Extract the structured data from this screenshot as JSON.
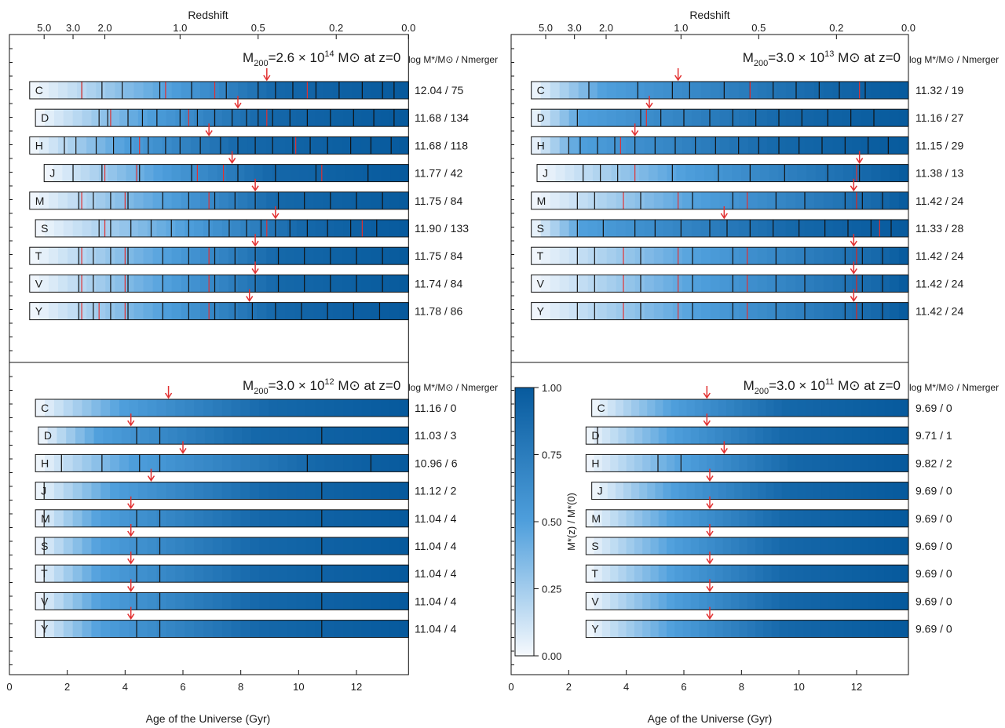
{
  "figure": {
    "top_axis_label": "Redshift",
    "bottom_axis_label": "Age of the Universe (Gyr)",
    "right_column_header": "log M*/M⊙ / Nmerger",
    "colorbar_label": "M*(z) / M*(0)",
    "colorbar_ticks": [
      "0.00",
      "0.25",
      "0.50",
      "0.75",
      "1.00"
    ],
    "colors": {
      "track_start": "#f6f9fd",
      "track_mid": "#4f9fdc",
      "track_end": "#075a9d",
      "merger_line": "#111111",
      "major_merger_line": "#e23030",
      "arrow": "#e23030"
    }
  },
  "chart_data": [
    {
      "type": "heatmap",
      "title": "M200=2.6 × 10^14 M⊙ at z=0",
      "title_parts": {
        "prefix": "M",
        "sub": "200",
        "mid": "=2.6 × 10",
        "sup": "14",
        "unit": " M⊙  at z=0"
      },
      "xlabel": "Age of the Universe (Gyr)",
      "xlim": [
        0,
        13.8
      ],
      "xticks": [
        "0",
        "2",
        "4",
        "6",
        "8",
        "10",
        "12"
      ],
      "top_xlabel": "Redshift",
      "top_ticks": [
        "5.0",
        "3.0",
        "2.0",
        "1.0",
        "0.5",
        "0.2",
        "0.0"
      ],
      "top_tick_ages": [
        1.2,
        2.2,
        3.3,
        5.9,
        8.6,
        11.3,
        13.8
      ],
      "show_top_axis": true,
      "show_bottom_axis": false,
      "rows": [
        {
          "label": "C",
          "start_age": 0.7,
          "half_mass_age": 8.9,
          "mass50": 5.6,
          "mass90": 9.2,
          "log_mstar": "12.04",
          "n_merger": "75",
          "mergers": [
            2.5,
            3.2,
            3.9,
            5.2,
            6.3,
            7.5,
            8.6,
            9.2,
            9.8,
            10.6,
            11.4,
            12.2,
            12.9,
            13.3
          ],
          "major_mergers": [
            2.5,
            5.4,
            7.1,
            10.3
          ]
        },
        {
          "label": "D",
          "start_age": 0.9,
          "half_mass_age": 7.9,
          "mass50": 4.8,
          "mass90": 8.8,
          "log_mstar": "11.68",
          "n_merger": "134",
          "mergers": [
            3.1,
            3.4,
            4.1,
            4.6,
            5.1,
            5.9,
            6.5,
            7.1,
            7.7,
            8.2,
            8.6,
            9.1,
            9.7,
            10.3,
            11.1,
            11.9,
            12.6,
            13.3
          ],
          "major_mergers": [
            3.5,
            6.2,
            8.9
          ]
        },
        {
          "label": "H",
          "start_age": 0.7,
          "half_mass_age": 6.9,
          "mass50": 4.0,
          "mass90": 8.0,
          "log_mstar": "11.68",
          "n_merger": "118",
          "mergers": [
            1.9,
            2.3,
            3.0,
            3.6,
            4.2,
            4.8,
            5.4,
            5.9,
            6.6,
            7.3,
            7.9,
            8.5,
            9.1,
            9.8,
            10.4,
            11.0,
            11.8,
            12.5,
            13.2
          ],
          "major_mergers": [
            4.5,
            9.9
          ]
        },
        {
          "label": "J",
          "start_age": 1.2,
          "half_mass_age": 7.7,
          "mass50": 5.2,
          "mass90": 9.0,
          "log_mstar": "11.77",
          "n_merger": "42",
          "mergers": [
            2.2,
            3.2,
            4.5,
            6.3,
            7.9,
            9.2,
            10.6,
            12.4
          ],
          "major_mergers": [
            3.3,
            4.4,
            6.5,
            7.4,
            10.8
          ]
        },
        {
          "label": "M",
          "start_age": 0.7,
          "half_mass_age": 8.5,
          "mass50": 5.5,
          "mass90": 9.3,
          "log_mstar": "11.75",
          "n_merger": "84",
          "mergers": [
            2.4,
            2.9,
            3.5,
            4.1,
            5.3,
            6.2,
            7.1,
            7.8,
            8.5,
            9.3,
            10.2,
            11.1,
            12.0,
            12.9
          ],
          "major_mergers": [
            2.5,
            4.0,
            6.9
          ]
        },
        {
          "label": "S",
          "start_age": 0.9,
          "half_mass_age": 9.2,
          "mass50": 6.1,
          "mass90": 10.1,
          "log_mstar": "11.90",
          "n_merger": "133",
          "mergers": [
            3.1,
            3.5,
            4.2,
            4.9,
            5.6,
            6.2,
            6.9,
            7.6,
            8.2,
            8.7,
            9.2,
            9.7,
            10.3,
            11.0,
            11.8,
            12.7
          ],
          "major_mergers": [
            3.3,
            8.9,
            12.2
          ]
        },
        {
          "label": "T",
          "start_age": 0.7,
          "half_mass_age": 8.5,
          "mass50": 5.5,
          "mass90": 9.3,
          "log_mstar": "11.75",
          "n_merger": "84",
          "mergers": [
            2.4,
            2.9,
            3.5,
            4.1,
            5.3,
            6.2,
            7.1,
            7.8,
            8.5,
            9.3,
            10.2,
            11.1,
            12.0,
            12.9
          ],
          "major_mergers": [
            2.5,
            4.0,
            6.9
          ]
        },
        {
          "label": "V",
          "start_age": 0.7,
          "half_mass_age": 8.5,
          "mass50": 5.5,
          "mass90": 9.3,
          "log_mstar": "11.74",
          "n_merger": "84",
          "mergers": [
            2.4,
            2.9,
            3.5,
            4.1,
            5.3,
            6.2,
            7.1,
            7.8,
            8.5,
            9.3,
            10.2,
            11.1,
            12.0,
            12.9
          ],
          "major_mergers": [
            2.5,
            4.0,
            6.9
          ]
        },
        {
          "label": "Y",
          "start_age": 0.7,
          "half_mass_age": 8.3,
          "mass50": 5.4,
          "mass90": 9.2,
          "log_mstar": "11.78",
          "n_merger": "86",
          "mergers": [
            2.4,
            2.9,
            3.5,
            4.1,
            5.3,
            6.2,
            7.1,
            7.8,
            8.4,
            9.2,
            10.1,
            11.0,
            11.9,
            12.8
          ],
          "major_mergers": [
            2.5,
            3.1,
            4.0,
            6.9
          ]
        }
      ]
    },
    {
      "type": "heatmap",
      "title": "M200=3.0 × 10^13 M⊙ at z=0",
      "title_parts": {
        "prefix": "M",
        "sub": "200",
        "mid": "=3.0 × 10",
        "sup": "13",
        "unit": " M⊙  at z=0"
      },
      "xlabel": "Age of the Universe (Gyr)",
      "xlim": [
        0,
        13.8
      ],
      "xticks": [
        "0",
        "2",
        "4",
        "6",
        "8",
        "10",
        "12"
      ],
      "top_xlabel": "Redshift",
      "top_ticks": [
        "5.0",
        "3.0",
        "2.0",
        "1.0",
        "0.5",
        "0.2",
        "0.0"
      ],
      "top_tick_ages": [
        1.2,
        2.2,
        3.3,
        5.9,
        8.6,
        11.3,
        13.8
      ],
      "show_top_axis": true,
      "show_bottom_axis": false,
      "rows": [
        {
          "label": "C",
          "start_age": 0.7,
          "half_mass_age": 5.8,
          "mass50": 3.2,
          "mass90": 10.8,
          "log_mstar": "11.32",
          "n_merger": "19",
          "mergers": [
            2.7,
            4.4,
            5.6,
            6.2,
            7.4,
            8.3,
            9.1,
            9.9,
            10.7,
            11.4,
            12.3
          ],
          "major_mergers": [
            8.3,
            12.1
          ]
        },
        {
          "label": "D",
          "start_age": 0.7,
          "half_mass_age": 4.8,
          "mass50": 2.5,
          "mass90": 9.5,
          "log_mstar": "11.16",
          "n_merger": "27",
          "mergers": [
            2.3,
            4.5,
            5.2,
            6.0,
            6.9,
            7.7,
            8.5,
            9.3,
            10.1,
            11.0,
            11.8,
            12.6
          ],
          "major_mergers": [
            4.7
          ]
        },
        {
          "label": "H",
          "start_age": 0.7,
          "half_mass_age": 4.3,
          "mass50": 2.4,
          "mass90": 9.3,
          "log_mstar": "11.15",
          "n_merger": "29",
          "mergers": [
            2.0,
            2.4,
            3.0,
            3.6,
            4.3,
            5.0,
            5.7,
            6.4,
            7.1,
            7.9,
            8.6,
            9.3,
            10.0,
            10.8,
            11.6,
            12.4,
            13.1
          ],
          "major_mergers": [
            3.8
          ]
        },
        {
          "label": "J",
          "start_age": 0.9,
          "half_mass_age": 12.1,
          "mass50": 6.0,
          "mass90": 12.4,
          "log_mstar": "11.38",
          "n_merger": "13",
          "mergers": [
            2.5,
            3.1,
            3.7,
            5.6,
            7.2,
            8.3,
            9.5,
            11.0,
            12.1
          ],
          "major_mergers": [
            4.3,
            12.0
          ]
        },
        {
          "label": "M",
          "start_age": 0.7,
          "half_mass_age": 11.9,
          "mass50": 6.5,
          "mass90": 12.8,
          "log_mstar": "11.42",
          "n_merger": "24",
          "mergers": [
            2.3,
            2.9,
            4.5,
            6.3,
            7.7,
            9.2,
            10.2,
            11.6,
            12.0,
            12.2,
            12.9
          ],
          "major_mergers": [
            3.9,
            5.8,
            8.2,
            12.0
          ]
        },
        {
          "label": "S",
          "start_age": 0.7,
          "half_mass_age": 7.4,
          "mass50": 2.5,
          "mass90": 9.8,
          "log_mstar": "11.33",
          "n_merger": "28",
          "mergers": [
            2.3,
            3.2,
            4.3,
            5.0,
            5.9,
            6.9,
            7.5,
            8.3,
            9.1,
            10.0,
            10.9,
            11.7,
            12.5,
            13.2
          ],
          "major_mergers": [
            12.8
          ]
        },
        {
          "label": "T",
          "start_age": 0.7,
          "half_mass_age": 11.9,
          "mass50": 6.5,
          "mass90": 12.8,
          "log_mstar": "11.42",
          "n_merger": "24",
          "mergers": [
            2.3,
            2.9,
            4.5,
            6.3,
            7.7,
            9.2,
            10.2,
            11.6,
            12.0,
            12.2,
            12.9
          ],
          "major_mergers": [
            3.9,
            5.8,
            8.2,
            12.0
          ]
        },
        {
          "label": "V",
          "start_age": 0.7,
          "half_mass_age": 11.9,
          "mass50": 6.5,
          "mass90": 12.8,
          "log_mstar": "11.42",
          "n_merger": "24",
          "mergers": [
            2.3,
            2.9,
            4.5,
            6.3,
            7.7,
            9.2,
            10.2,
            11.6,
            12.0,
            12.2,
            12.9
          ],
          "major_mergers": [
            3.9,
            5.8,
            8.2,
            12.0
          ]
        },
        {
          "label": "Y",
          "start_age": 0.7,
          "half_mass_age": 11.9,
          "mass50": 6.5,
          "mass90": 12.8,
          "log_mstar": "11.42",
          "n_merger": "24",
          "mergers": [
            2.3,
            2.9,
            4.5,
            6.3,
            7.7,
            9.2,
            10.2,
            11.6,
            12.0,
            12.2,
            12.9
          ],
          "major_mergers": [
            3.9,
            5.8,
            8.2,
            12.0
          ]
        }
      ]
    },
    {
      "type": "heatmap",
      "title": "M200=3.0 × 10^12 M⊙ at z=0",
      "title_parts": {
        "prefix": "M",
        "sub": "200",
        "mid": "=3.0 × 10",
        "sup": "12",
        "unit": " M⊙  at z=0"
      },
      "xlabel": "Age of the Universe (Gyr)",
      "xlim": [
        0,
        13.8
      ],
      "xticks": [
        "0",
        "2",
        "4",
        "6",
        "8",
        "10",
        "12"
      ],
      "show_top_axis": false,
      "show_bottom_axis": true,
      "rows": [
        {
          "label": "C",
          "start_age": 0.9,
          "half_mass_age": 5.5,
          "mass50": 3.9,
          "mass90": 9.0,
          "log_mstar": "11.16",
          "n_merger": "0",
          "mergers": [],
          "major_mergers": []
        },
        {
          "label": "D",
          "start_age": 1.0,
          "half_mass_age": 4.2,
          "mass50": 3.1,
          "mass90": 8.5,
          "log_mstar": "11.03",
          "n_merger": "3",
          "mergers": [
            4.4,
            5.2,
            10.8
          ],
          "major_mergers": []
        },
        {
          "label": "H",
          "start_age": 0.9,
          "half_mass_age": 6.0,
          "mass50": 4.2,
          "mass90": 10.5,
          "log_mstar": "10.96",
          "n_merger": "6",
          "mergers": [
            1.8,
            3.2,
            4.5,
            5.2,
            10.3,
            12.5
          ],
          "major_mergers": []
        },
        {
          "label": "J",
          "start_age": 0.9,
          "half_mass_age": 4.9,
          "mass50": 3.6,
          "mass90": 8.9,
          "log_mstar": "11.12",
          "n_merger": "2",
          "mergers": [
            1.2,
            10.8
          ],
          "major_mergers": []
        },
        {
          "label": "M",
          "start_age": 0.9,
          "half_mass_age": 4.2,
          "mass50": 3.1,
          "mass90": 8.6,
          "log_mstar": "11.04",
          "n_merger": "4",
          "mergers": [
            1.2,
            4.4,
            5.2,
            10.8
          ],
          "major_mergers": []
        },
        {
          "label": "S",
          "start_age": 0.9,
          "half_mass_age": 4.2,
          "mass50": 3.1,
          "mass90": 8.6,
          "log_mstar": "11.04",
          "n_merger": "4",
          "mergers": [
            1.2,
            4.4,
            5.2,
            10.8
          ],
          "major_mergers": []
        },
        {
          "label": "T",
          "start_age": 0.9,
          "half_mass_age": 4.2,
          "mass50": 3.1,
          "mass90": 8.6,
          "log_mstar": "11.04",
          "n_merger": "4",
          "mergers": [
            1.2,
            4.4,
            5.2,
            10.8
          ],
          "major_mergers": []
        },
        {
          "label": "V",
          "start_age": 0.9,
          "half_mass_age": 4.2,
          "mass50": 3.1,
          "mass90": 8.6,
          "log_mstar": "11.04",
          "n_merger": "4",
          "mergers": [
            1.2,
            4.4,
            5.2,
            10.8
          ],
          "major_mergers": []
        },
        {
          "label": "Y",
          "start_age": 0.9,
          "half_mass_age": 4.2,
          "mass50": 3.1,
          "mass90": 8.6,
          "log_mstar": "11.04",
          "n_merger": "4",
          "mergers": [
            1.2,
            4.4,
            5.2,
            10.8
          ],
          "major_mergers": []
        }
      ]
    },
    {
      "type": "heatmap",
      "title": "M200=3.0 × 10^11 M⊙ at z=0",
      "title_parts": {
        "prefix": "M",
        "sub": "200",
        "mid": "=3.0 × 10",
        "sup": "11",
        "unit": " M⊙  at z=0"
      },
      "xlabel": "Age of the Universe (Gyr)",
      "xlim": [
        0,
        13.8
      ],
      "xticks": [
        "0",
        "2",
        "4",
        "6",
        "8",
        "10",
        "12"
      ],
      "show_top_axis": false,
      "show_bottom_axis": true,
      "rows": [
        {
          "label": "C",
          "start_age": 2.8,
          "half_mass_age": 6.8,
          "mass50": 5.6,
          "mass90": 9.5,
          "log_mstar": "9.69",
          "n_merger": "0",
          "mergers": [],
          "major_mergers": []
        },
        {
          "label": "D",
          "start_age": 2.6,
          "half_mass_age": 6.8,
          "mass50": 5.6,
          "mass90": 9.5,
          "log_mstar": "9.71",
          "n_merger": "1",
          "mergers": [
            3.0
          ],
          "major_mergers": []
        },
        {
          "label": "H",
          "start_age": 2.6,
          "half_mass_age": 7.4,
          "mass50": 6.0,
          "mass90": 9.8,
          "log_mstar": "9.82",
          "n_merger": "2",
          "mergers": [
            5.1,
            5.9
          ],
          "major_mergers": []
        },
        {
          "label": "J",
          "start_age": 2.8,
          "half_mass_age": 6.9,
          "mass50": 5.6,
          "mass90": 9.5,
          "log_mstar": "9.69",
          "n_merger": "0",
          "mergers": [],
          "major_mergers": []
        },
        {
          "label": "M",
          "start_age": 2.6,
          "half_mass_age": 6.9,
          "mass50": 5.6,
          "mass90": 9.5,
          "log_mstar": "9.69",
          "n_merger": "0",
          "mergers": [],
          "major_mergers": []
        },
        {
          "label": "S",
          "start_age": 2.6,
          "half_mass_age": 6.9,
          "mass50": 5.6,
          "mass90": 9.5,
          "log_mstar": "9.69",
          "n_merger": "0",
          "mergers": [],
          "major_mergers": []
        },
        {
          "label": "T",
          "start_age": 2.6,
          "half_mass_age": 6.9,
          "mass50": 5.6,
          "mass90": 9.5,
          "log_mstar": "9.69",
          "n_merger": "0",
          "mergers": [],
          "major_mergers": []
        },
        {
          "label": "V",
          "start_age": 2.6,
          "half_mass_age": 6.9,
          "mass50": 5.6,
          "mass90": 9.5,
          "log_mstar": "9.69",
          "n_merger": "0",
          "mergers": [],
          "major_mergers": []
        },
        {
          "label": "Y",
          "start_age": 2.6,
          "half_mass_age": 6.9,
          "mass50": 5.6,
          "mass90": 9.5,
          "log_mstar": "9.69",
          "n_merger": "0",
          "mergers": [],
          "major_mergers": []
        }
      ]
    }
  ]
}
